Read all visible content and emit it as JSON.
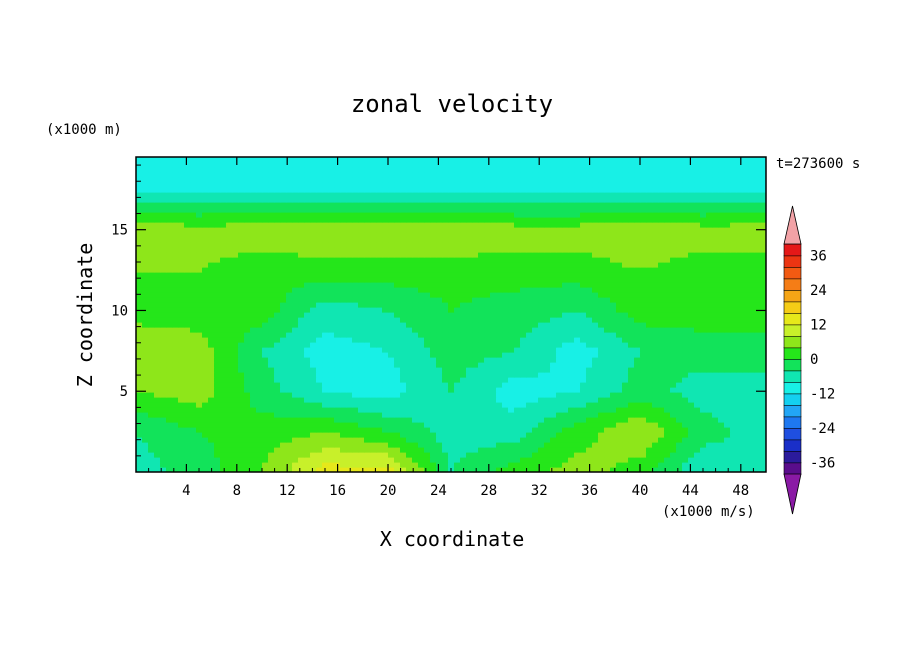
{
  "chart_data": {
    "type": "heatmap",
    "title": "zonal velocity",
    "xlabel": "X coordinate",
    "ylabel": "Z coordinate",
    "x_unit": "(x1000 m/s)",
    "y_unit": "(x1000 m)",
    "time_label": "t=273600 s",
    "xlim": [
      0,
      50
    ],
    "ylim": [
      0,
      19.5
    ],
    "x_ticks": [
      4,
      8,
      12,
      16,
      20,
      24,
      28,
      32,
      36,
      40,
      44,
      48
    ],
    "y_ticks": [
      5,
      10,
      15
    ],
    "colorbar": {
      "levels": [
        -40,
        -36,
        -32,
        -28,
        -24,
        -20,
        -16,
        -12,
        -8,
        -4,
        0,
        4,
        8,
        12,
        16,
        20,
        24,
        28,
        32,
        36,
        40
      ],
      "colors": [
        "#5a0d8c",
        "#2b1b9c",
        "#1a2fc8",
        "#1f4fe0",
        "#1e78f0",
        "#22a6f5",
        "#14d0f0",
        "#18f0e6",
        "#10e6b2",
        "#12e35a",
        "#25e61a",
        "#8ee61a",
        "#c8f02a",
        "#e6e81a",
        "#f5cc16",
        "#f5a516",
        "#f57d16",
        "#f25a12",
        "#ec3512",
        "#e51818"
      ],
      "under_color": "#8a1aa5",
      "over_color": "#f2a2a6",
      "tick_labels": [
        "-36",
        "-24",
        "-12",
        "0",
        "12",
        "24",
        "36"
      ],
      "tick_values": [
        -36,
        -24,
        -12,
        0,
        12,
        24,
        36
      ]
    },
    "field": {
      "description_values_m_per_s": "approximate field u(x,z) sampled on grid",
      "x_grid": [
        0,
        5,
        10,
        15,
        20,
        25,
        30,
        35,
        40,
        45,
        50
      ],
      "z_grid": [
        0,
        2.5,
        5,
        7.5,
        10,
        12.5,
        15,
        17.5,
        19.5
      ],
      "values": [
        [
          -6,
          -2,
          4,
          14,
          14,
          -4,
          2,
          6,
          2,
          -8,
          -4
        ],
        [
          -4,
          0,
          2,
          4,
          0,
          -6,
          -6,
          2,
          8,
          -2,
          -6
        ],
        [
          4,
          6,
          -2,
          -8,
          -10,
          -4,
          -10,
          -8,
          -2,
          -6,
          -8
        ],
        [
          8,
          6,
          -4,
          -10,
          -8,
          -2,
          -4,
          -10,
          -4,
          -2,
          0
        ],
        [
          2,
          2,
          2,
          -6,
          -4,
          0,
          -2,
          -4,
          2,
          2,
          0
        ],
        [
          4,
          4,
          2,
          2,
          2,
          2,
          2,
          2,
          4,
          2,
          2
        ],
        [
          6,
          6,
          6,
          8,
          8,
          8,
          6,
          6,
          8,
          6,
          6
        ],
        [
          -8,
          -10,
          -9,
          -10,
          -10,
          -9,
          -10,
          -10,
          -9,
          -10,
          -9
        ],
        [
          -10,
          -12,
          -11,
          -12,
          -12,
          -11,
          -12,
          -12,
          -11,
          -12,
          -11
        ]
      ]
    }
  }
}
